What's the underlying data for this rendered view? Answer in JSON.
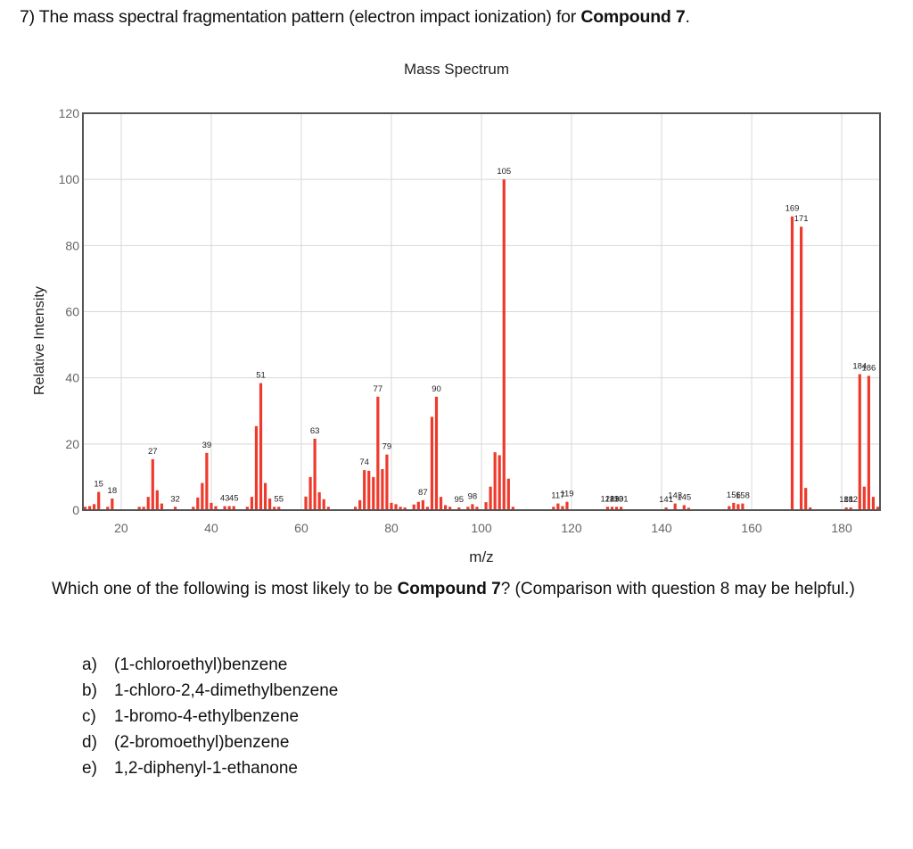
{
  "question": {
    "title_prefix": "7) The mass spectral fragmentation pattern (electron impact ionization) for ",
    "title_bold": "Compound 7",
    "title_suffix": ".",
    "prompt_prefix": "Which one of the following is most likely to be ",
    "prompt_bold": "Compound 7",
    "prompt_suffix": "? (Comparison with question 8 may be helpful.)",
    "options": [
      {
        "letter": "a)",
        "text": "(1-chloroethyl)benzene"
      },
      {
        "letter": "b)",
        "text": "1-chloro-2,4-dimethylbenzene"
      },
      {
        "letter": "c)",
        "text": "1-bromo-4-ethylbenzene"
      },
      {
        "letter": "d)",
        "text": "(2-bromoethyl)benzene"
      },
      {
        "letter": "e)",
        "text": "1,2-diphenyl-1-ethanone"
      }
    ]
  },
  "chart_data": {
    "type": "bar",
    "title": "Mass Spectrum",
    "xlabel": "m/z",
    "ylabel": "Relative Intensity",
    "xlim": [
      11.5,
      188.5
    ],
    "ylim": [
      0,
      120
    ],
    "xticks": [
      20,
      40,
      60,
      80,
      100,
      120,
      140,
      160,
      180
    ],
    "yticks": [
      0,
      20,
      40,
      60,
      80,
      100,
      120
    ],
    "grid": true,
    "bar_color": "#ee3a2c",
    "peaks": [
      {
        "mz": 12,
        "intensity": 1.0
      },
      {
        "mz": 13,
        "intensity": 1.2
      },
      {
        "mz": 14,
        "intensity": 1.8
      },
      {
        "mz": 15,
        "intensity": 5.5
      },
      {
        "mz": 17,
        "intensity": 1.0
      },
      {
        "mz": 18,
        "intensity": 3.5
      },
      {
        "mz": 24,
        "intensity": 1.0
      },
      {
        "mz": 25,
        "intensity": 1.0
      },
      {
        "mz": 26,
        "intensity": 4.0
      },
      {
        "mz": 27,
        "intensity": 15.4
      },
      {
        "mz": 28,
        "intensity": 6.0
      },
      {
        "mz": 29,
        "intensity": 2.0
      },
      {
        "mz": 32,
        "intensity": 1.0
      },
      {
        "mz": 36,
        "intensity": 1.0
      },
      {
        "mz": 37,
        "intensity": 3.8
      },
      {
        "mz": 38,
        "intensity": 8.2
      },
      {
        "mz": 39,
        "intensity": 17.3
      },
      {
        "mz": 40,
        "intensity": 2.2
      },
      {
        "mz": 41,
        "intensity": 1.2
      },
      {
        "mz": 43,
        "intensity": 1.2
      },
      {
        "mz": 44,
        "intensity": 1.2
      },
      {
        "mz": 45,
        "intensity": 1.2
      },
      {
        "mz": 48,
        "intensity": 1.0
      },
      {
        "mz": 49,
        "intensity": 4.0
      },
      {
        "mz": 50,
        "intensity": 25.4
      },
      {
        "mz": 51,
        "intensity": 38.4
      },
      {
        "mz": 52,
        "intensity": 8.2
      },
      {
        "mz": 53,
        "intensity": 3.5
      },
      {
        "mz": 54,
        "intensity": 1.0
      },
      {
        "mz": 55,
        "intensity": 1.0
      },
      {
        "mz": 61,
        "intensity": 4.1
      },
      {
        "mz": 62,
        "intensity": 10.0
      },
      {
        "mz": 63,
        "intensity": 21.6
      },
      {
        "mz": 64,
        "intensity": 5.4
      },
      {
        "mz": 65,
        "intensity": 3.3
      },
      {
        "mz": 66,
        "intensity": 1.0
      },
      {
        "mz": 72,
        "intensity": 1.0
      },
      {
        "mz": 73,
        "intensity": 3.0
      },
      {
        "mz": 74,
        "intensity": 12.1
      },
      {
        "mz": 75,
        "intensity": 11.9
      },
      {
        "mz": 76,
        "intensity": 10.0
      },
      {
        "mz": 77,
        "intensity": 34.3
      },
      {
        "mz": 78,
        "intensity": 12.4
      },
      {
        "mz": 79,
        "intensity": 16.8
      },
      {
        "mz": 80,
        "intensity": 2.2
      },
      {
        "mz": 81,
        "intensity": 1.8
      },
      {
        "mz": 82,
        "intensity": 1.0
      },
      {
        "mz": 83,
        "intensity": 0.8
      },
      {
        "mz": 85,
        "intensity": 1.7
      },
      {
        "mz": 86,
        "intensity": 2.5
      },
      {
        "mz": 87,
        "intensity": 3.0
      },
      {
        "mz": 88,
        "intensity": 1.0
      },
      {
        "mz": 89,
        "intensity": 28.2
      },
      {
        "mz": 90,
        "intensity": 34.3
      },
      {
        "mz": 91,
        "intensity": 4.0
      },
      {
        "mz": 92,
        "intensity": 1.5
      },
      {
        "mz": 93,
        "intensity": 1.0
      },
      {
        "mz": 95,
        "intensity": 0.8
      },
      {
        "mz": 97,
        "intensity": 1.0
      },
      {
        "mz": 98,
        "intensity": 1.8
      },
      {
        "mz": 99,
        "intensity": 1.0
      },
      {
        "mz": 101,
        "intensity": 2.4
      },
      {
        "mz": 102,
        "intensity": 7.1
      },
      {
        "mz": 103,
        "intensity": 17.5
      },
      {
        "mz": 104,
        "intensity": 16.6
      },
      {
        "mz": 105,
        "intensity": 100.0
      },
      {
        "mz": 106,
        "intensity": 9.5
      },
      {
        "mz": 107,
        "intensity": 1.0
      },
      {
        "mz": 116,
        "intensity": 1.0
      },
      {
        "mz": 117,
        "intensity": 2.0
      },
      {
        "mz": 118,
        "intensity": 1.2
      },
      {
        "mz": 119,
        "intensity": 2.5
      },
      {
        "mz": 128,
        "intensity": 1.0
      },
      {
        "mz": 129,
        "intensity": 1.0
      },
      {
        "mz": 130,
        "intensity": 1.0
      },
      {
        "mz": 131,
        "intensity": 1.0
      },
      {
        "mz": 141,
        "intensity": 0.8
      },
      {
        "mz": 143,
        "intensity": 2.0
      },
      {
        "mz": 145,
        "intensity": 1.5
      },
      {
        "mz": 146,
        "intensity": 0.7
      },
      {
        "mz": 155,
        "intensity": 1.2
      },
      {
        "mz": 156,
        "intensity": 2.2
      },
      {
        "mz": 157,
        "intensity": 1.8
      },
      {
        "mz": 158,
        "intensity": 2.0
      },
      {
        "mz": 169,
        "intensity": 88.8
      },
      {
        "mz": 171,
        "intensity": 85.7
      },
      {
        "mz": 172,
        "intensity": 6.7
      },
      {
        "mz": 173,
        "intensity": 0.8
      },
      {
        "mz": 181,
        "intensity": 0.8
      },
      {
        "mz": 182,
        "intensity": 0.8
      },
      {
        "mz": 184,
        "intensity": 41.1
      },
      {
        "mz": 185,
        "intensity": 7.1
      },
      {
        "mz": 186,
        "intensity": 40.6
      },
      {
        "mz": 187,
        "intensity": 4.0
      },
      {
        "mz": 188,
        "intensity": 1.0
      }
    ],
    "peak_labels": [
      {
        "text": "15",
        "mz": 15,
        "intensity": 5.5
      },
      {
        "text": "18",
        "mz": 18,
        "intensity": 3.5
      },
      {
        "text": "27",
        "mz": 27,
        "intensity": 15.4
      },
      {
        "text": "32",
        "mz": 32,
        "intensity": 1.0
      },
      {
        "text": "39",
        "mz": 39,
        "intensity": 17.3
      },
      {
        "text": "43",
        "mz": 43,
        "intensity": 1.2
      },
      {
        "text": "45",
        "mz": 45,
        "intensity": 1.2
      },
      {
        "text": "51",
        "mz": 51,
        "intensity": 38.4
      },
      {
        "text": "55",
        "mz": 55,
        "intensity": 1.0
      },
      {
        "text": "63",
        "mz": 63,
        "intensity": 21.6
      },
      {
        "text": "74",
        "mz": 74,
        "intensity": 12.1
      },
      {
        "text": "77",
        "mz": 77,
        "intensity": 34.3
      },
      {
        "text": "79",
        "mz": 79,
        "intensity": 16.8
      },
      {
        "text": "87",
        "mz": 87,
        "intensity": 3.0
      },
      {
        "text": "90",
        "mz": 90,
        "intensity": 34.3
      },
      {
        "text": "95",
        "mz": 95,
        "intensity": 0.8
      },
      {
        "text": "98",
        "mz": 98,
        "intensity": 1.8
      },
      {
        "text": "105",
        "mz": 105,
        "intensity": 100.0
      },
      {
        "text": "117",
        "mz": 117,
        "intensity": 2.0
      },
      {
        "text": "119",
        "mz": 119,
        "intensity": 2.5
      },
      {
        "text": "128",
        "mz": 128,
        "intensity": 1.0
      },
      {
        "text": "129",
        "mz": 129,
        "intensity": 1.0
      },
      {
        "text": "130",
        "mz": 130,
        "intensity": 1.0
      },
      {
        "text": "131",
        "mz": 131,
        "intensity": 1.0
      },
      {
        "text": "141",
        "mz": 141,
        "intensity": 0.8
      },
      {
        "text": "143",
        "mz": 143,
        "intensity": 2.0
      },
      {
        "text": "145",
        "mz": 145,
        "intensity": 1.5
      },
      {
        "text": "156",
        "mz": 156,
        "intensity": 2.2
      },
      {
        "text": "158",
        "mz": 158,
        "intensity": 2.0
      },
      {
        "text": "169",
        "mz": 169,
        "intensity": 88.8
      },
      {
        "text": "171",
        "mz": 171,
        "intensity": 85.7
      },
      {
        "text": "181",
        "mz": 181,
        "intensity": 0.8
      },
      {
        "text": "182",
        "mz": 182,
        "intensity": 0.8
      },
      {
        "text": "184",
        "mz": 184,
        "intensity": 41.1
      },
      {
        "text": "186",
        "mz": 186,
        "intensity": 40.6
      }
    ]
  }
}
